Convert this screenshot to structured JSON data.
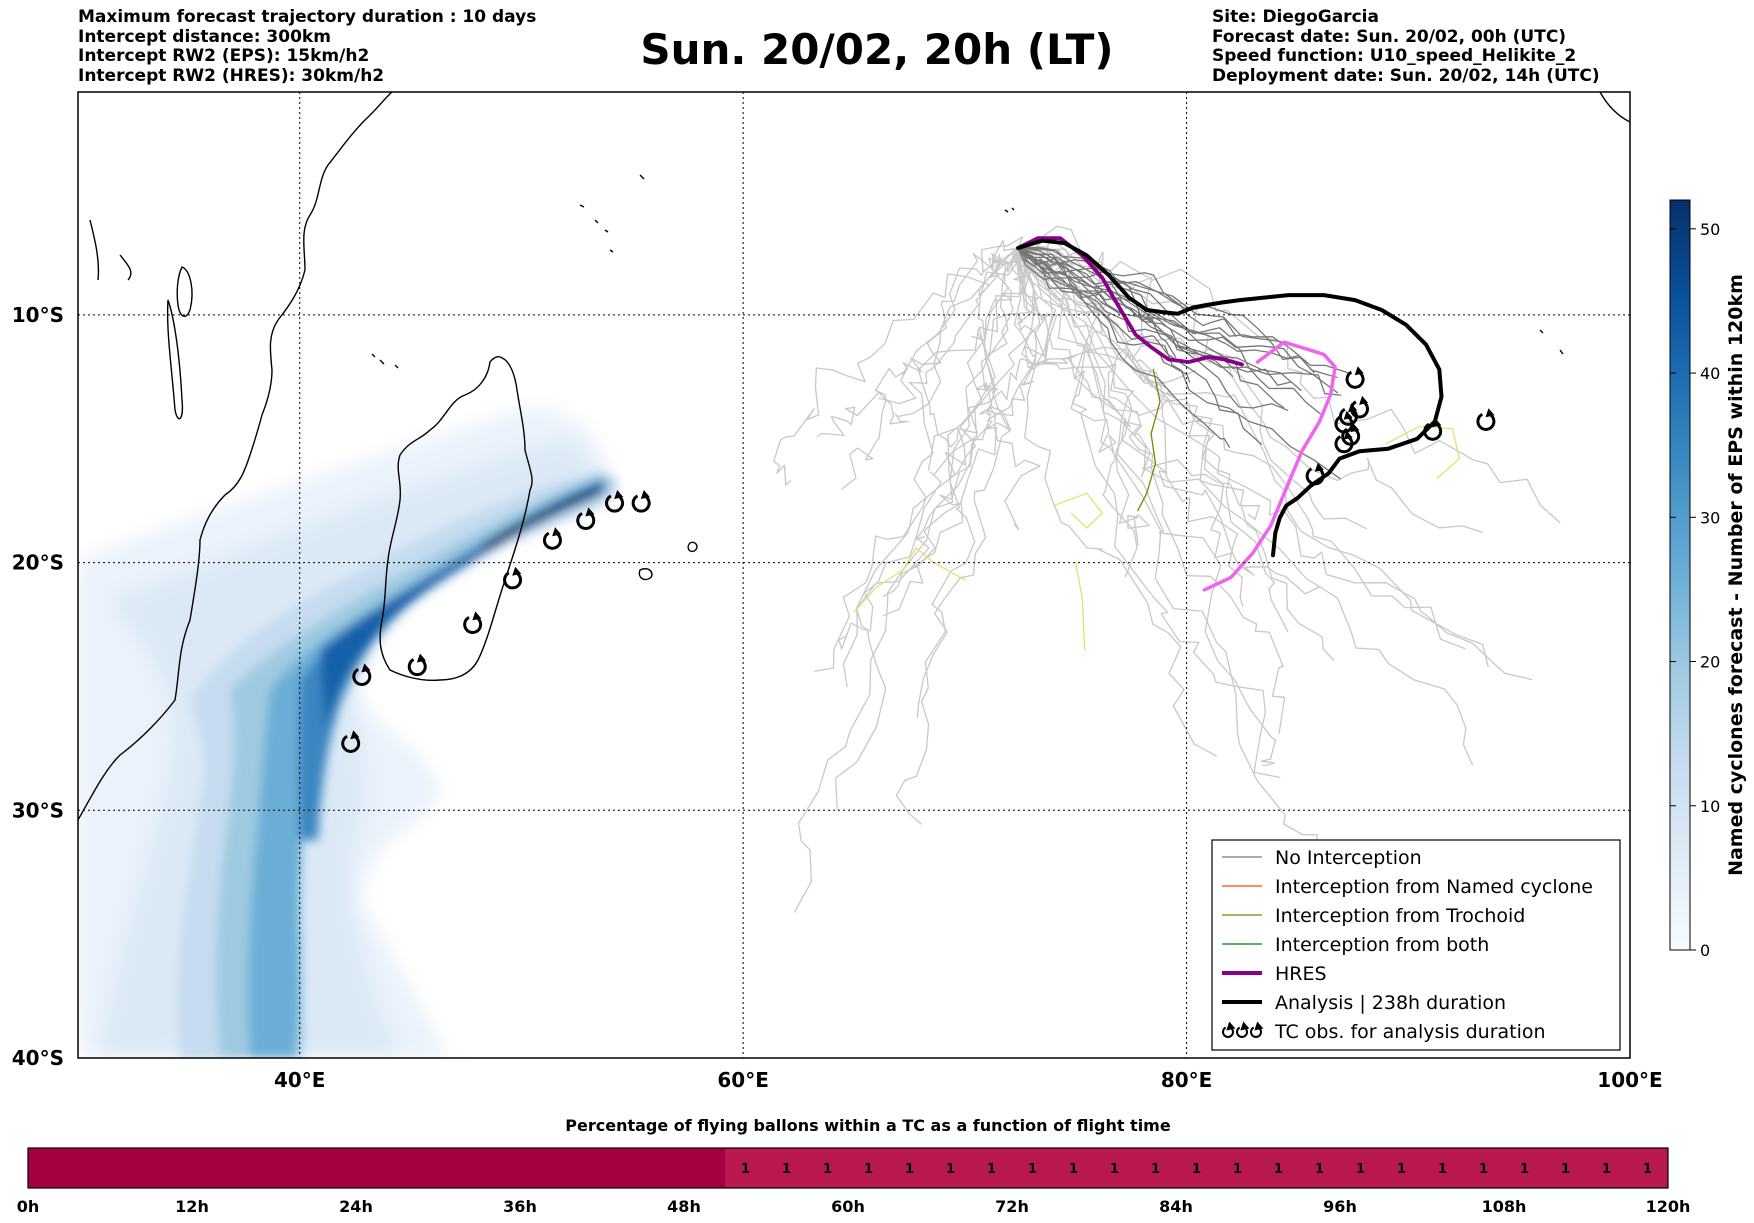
{
  "header": {
    "left_lines": [
      "Maximum forecast trajectory duration : 10 days",
      "Intercept distance: 300km",
      "Intercept RW2 (EPS):  15km/h2",
      "Intercept RW2 (HRES): 30km/h2"
    ],
    "title": "Sun. 20/02, 20h (LT)",
    "right_lines": [
      "Site: DiegoGarcia",
      "Forecast date: Sun. 20/02, 00h (UTC)",
      "Speed function: U10_speed_Helikite_2",
      "Deployment date: Sun. 20/02, 14h (UTC)"
    ]
  },
  "map": {
    "lon_range": [
      30,
      100
    ],
    "lat_range": [
      -40,
      -1
    ],
    "lon_ticks": [
      {
        "value": 40,
        "label": "40°E"
      },
      {
        "value": 60,
        "label": "60°E"
      },
      {
        "value": 80,
        "label": "80°E"
      },
      {
        "value": 100,
        "label": "100°E"
      }
    ],
    "lat_ticks": [
      {
        "value": -10,
        "label": "10°S"
      },
      {
        "value": -20,
        "label": "20°S"
      },
      {
        "value": -30,
        "label": "30°S"
      },
      {
        "value": -40,
        "label": "40°S"
      }
    ],
    "grid": "dotted",
    "colors": {
      "no_interception": "#777777",
      "light_track": "#c8c8c8",
      "named_cyclone": "#ff4500",
      "trochoid": "#808000",
      "trochoid_light": "#e6e070",
      "both": "#008000",
      "hres": "#8b008b",
      "analysis": "#000000",
      "forecast_track": "#ee66ee"
    }
  },
  "colorbar": {
    "title": "Named cyclones forecast - Number of EPS within 120km",
    "min": 0,
    "max": 52,
    "ticks": [
      0,
      10,
      20,
      30,
      40,
      50
    ],
    "colormap": "Blues"
  },
  "legend": {
    "position": "lower-right",
    "items": [
      {
        "label": "No Interception",
        "color": "#777777",
        "style": "thin"
      },
      {
        "label": "Interception from Named cyclone",
        "color": "#ff4500",
        "style": "thin"
      },
      {
        "label": "Interception from Trochoid",
        "color": "#808000",
        "style": "thin"
      },
      {
        "label": "Interception from both",
        "color": "#008000",
        "style": "thin"
      },
      {
        "label": "HRES",
        "color": "#8b008b",
        "style": "thick"
      },
      {
        "label": "Analysis | 238h duration",
        "color": "#000000",
        "style": "thick"
      },
      {
        "label": "TC obs. for analysis duration",
        "color": "#000000",
        "style": "symbol"
      }
    ]
  },
  "tc_obs_madagascar": [
    [
      55.4,
      -17.6
    ],
    [
      54.2,
      -17.6
    ],
    [
      52.9,
      -18.3
    ],
    [
      51.4,
      -19.1
    ],
    [
      49.6,
      -20.7
    ],
    [
      47.8,
      -22.5
    ],
    [
      45.3,
      -24.2
    ],
    [
      42.8,
      -24.6
    ],
    [
      42.3,
      -27.3
    ]
  ],
  "tc_obs_east": [
    [
      87.6,
      -12.6
    ],
    [
      87.8,
      -13.8
    ],
    [
      87.3,
      -14.1
    ],
    [
      87.1,
      -14.4
    ],
    [
      87.4,
      -14.9
    ],
    [
      87.1,
      -15.2
    ],
    [
      91.1,
      -14.7
    ],
    [
      93.5,
      -14.3
    ],
    [
      85.8,
      -16.5
    ]
  ],
  "analysis_track": [
    [
      72.4,
      -7.3
    ],
    [
      73.5,
      -7.0
    ],
    [
      74.5,
      -7.1
    ],
    [
      75.5,
      -7.6
    ],
    [
      76.5,
      -8.4
    ],
    [
      77.4,
      -9.3
    ],
    [
      78.2,
      -9.8
    ],
    [
      79.0,
      -9.9
    ],
    [
      79.6,
      -9.95
    ],
    [
      80.3,
      -9.7
    ],
    [
      80.9,
      -9.6
    ],
    [
      81.6,
      -9.5
    ],
    [
      82.4,
      -9.4
    ],
    [
      83.5,
      -9.3
    ],
    [
      84.6,
      -9.2
    ],
    [
      86.2,
      -9.2
    ],
    [
      87.6,
      -9.4
    ],
    [
      88.8,
      -9.8
    ],
    [
      89.9,
      -10.4
    ],
    [
      90.8,
      -11.2
    ],
    [
      91.4,
      -12.2
    ],
    [
      91.5,
      -13.3
    ],
    [
      91.2,
      -14.3
    ],
    [
      90.4,
      -15.0
    ],
    [
      89.1,
      -15.4
    ],
    [
      87.8,
      -15.5
    ],
    [
      86.9,
      -15.8
    ],
    [
      86.4,
      -16.4
    ],
    [
      85.6,
      -16.9
    ],
    [
      85.0,
      -17.4
    ],
    [
      84.5,
      -17.7
    ],
    [
      84.2,
      -18.2
    ],
    [
      84.0,
      -18.8
    ],
    [
      83.9,
      -19.7
    ]
  ],
  "hres_track": [
    [
      72.4,
      -7.3
    ],
    [
      73.3,
      -6.9
    ],
    [
      74.3,
      -6.9
    ],
    [
      75.3,
      -7.6
    ],
    [
      76.2,
      -8.5
    ],
    [
      76.9,
      -9.6
    ],
    [
      77.7,
      -10.8
    ],
    [
      78.4,
      -11.3
    ],
    [
      79.2,
      -11.8
    ],
    [
      80.1,
      -11.9
    ],
    [
      81.0,
      -11.7
    ],
    [
      81.7,
      -11.8
    ],
    [
      82.5,
      -12.0
    ]
  ],
  "forecast_track": [
    [
      83.2,
      -11.9
    ],
    [
      83.8,
      -11.5
    ],
    [
      84.4,
      -11.1
    ],
    [
      85.5,
      -11.4
    ],
    [
      86.2,
      -11.6
    ],
    [
      86.7,
      -12.1
    ],
    [
      86.5,
      -13.2
    ],
    [
      86.0,
      -14.3
    ],
    [
      85.2,
      -15.5
    ],
    [
      84.5,
      -17.0
    ],
    [
      83.8,
      -18.5
    ],
    [
      83.0,
      -19.6
    ],
    [
      82.0,
      -20.6
    ],
    [
      80.8,
      -21.1
    ]
  ],
  "bar": {
    "title": "Percentage of flying ballons within a TC as a function of flight time",
    "range": [
      0,
      120
    ],
    "ticks": [
      {
        "value": 0,
        "label": "0h"
      },
      {
        "value": 12,
        "label": "12h"
      },
      {
        "value": 24,
        "label": "24h"
      },
      {
        "value": 36,
        "label": "36h"
      },
      {
        "value": 48,
        "label": "48h"
      },
      {
        "value": 60,
        "label": "60h"
      },
      {
        "value": 72,
        "label": "72h"
      },
      {
        "value": 84,
        "label": "84h"
      },
      {
        "value": 96,
        "label": "96h"
      },
      {
        "value": 108,
        "label": "108h"
      },
      {
        "value": 120,
        "label": "120h"
      }
    ],
    "high_color": "#a50040",
    "low_color": "#b8174f",
    "high_until": 51,
    "cell_step": 3,
    "value_start": 51,
    "value_label": "1"
  }
}
